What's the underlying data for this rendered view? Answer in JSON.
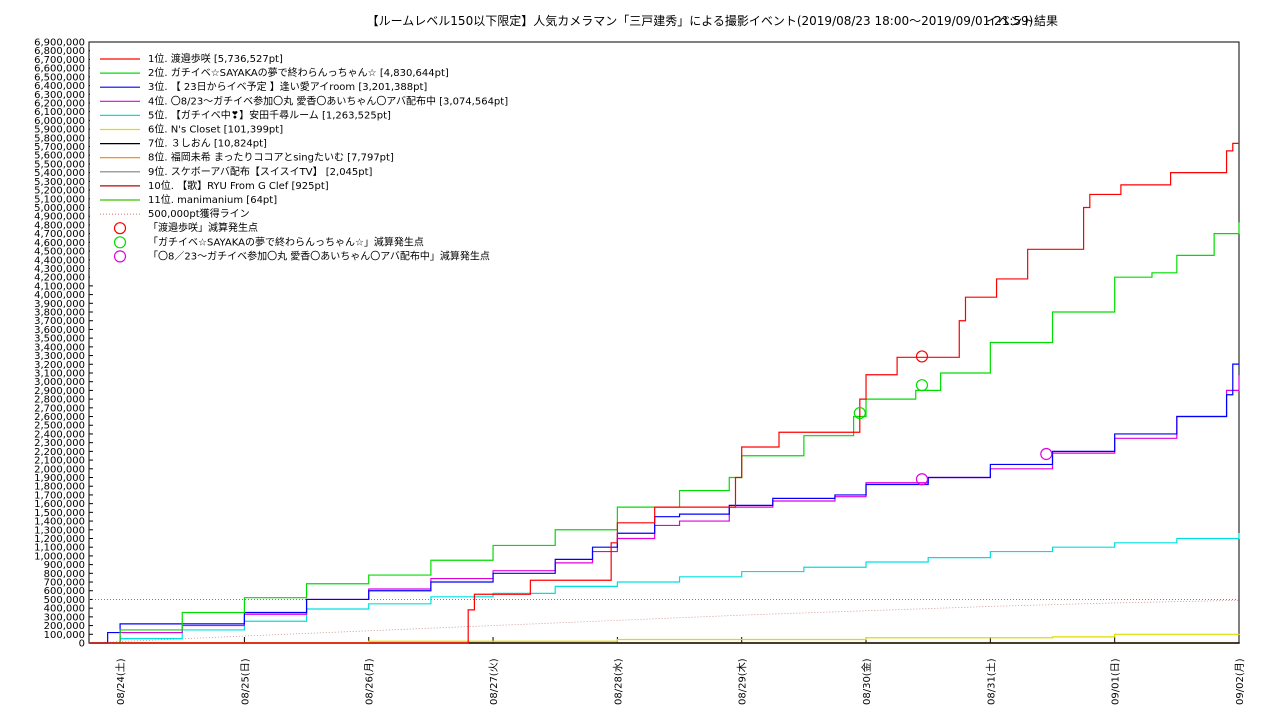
{
  "chart_data": {
    "type": "line",
    "title": "【ルームレベル150以下限定】人気カメラマン「三戸建秀」による撮影イベント(2019/08/23 18:00〜2019/09/01 21:59)",
    "subtitle": "イベント結果",
    "xlabel": "",
    "ylabel": "",
    "ylim": [
      0,
      6900000
    ],
    "ytick_step": 100000,
    "x_ticks": [
      "08/24(土)",
      "08/25(日)",
      "08/26(月)",
      "08/27(火)",
      "08/28(水)",
      "08/29(木)",
      "08/30(金)",
      "08/31(土)",
      "09/01(日)",
      "09/02(月)"
    ],
    "x_range_days": [
      -0.25,
      9.0
    ],
    "grid": true,
    "legend_position": "top-left",
    "series": [
      {
        "name": "1位. 渡邉歩咲 [5,736,527pt]",
        "color": "#ff0000",
        "step": true,
        "points": [
          [
            -0.25,
            0
          ],
          [
            2.75,
            0
          ],
          [
            2.8,
            380000
          ],
          [
            2.85,
            560000
          ],
          [
            3.25,
            560000
          ],
          [
            3.3,
            720000
          ],
          [
            3.9,
            720000
          ],
          [
            3.95,
            1150000
          ],
          [
            4.0,
            1380000
          ],
          [
            4.25,
            1380000
          ],
          [
            4.3,
            1560000
          ],
          [
            4.9,
            1560000
          ],
          [
            4.95,
            1900000
          ],
          [
            5.0,
            2250000
          ],
          [
            5.25,
            2250000
          ],
          [
            5.3,
            2420000
          ],
          [
            5.9,
            2420000
          ],
          [
            5.95,
            2800000
          ],
          [
            6.0,
            3080000
          ],
          [
            6.2,
            3080000
          ],
          [
            6.25,
            3280000
          ],
          [
            6.7,
            3280000
          ],
          [
            6.75,
            3700000
          ],
          [
            6.8,
            3970000
          ],
          [
            7.0,
            3970000
          ],
          [
            7.05,
            4180000
          ],
          [
            7.25,
            4180000
          ],
          [
            7.3,
            4520000
          ],
          [
            7.7,
            4520000
          ],
          [
            7.75,
            5000000
          ],
          [
            7.8,
            5150000
          ],
          [
            8.05,
            5260000
          ],
          [
            8.4,
            5260000
          ],
          [
            8.45,
            5400000
          ],
          [
            8.85,
            5400000
          ],
          [
            8.9,
            5650000
          ],
          [
            8.95,
            5736527
          ],
          [
            9.0,
            5736527
          ]
        ]
      },
      {
        "name": "2位. ガチイベ☆SAYAKAの夢で終わらんっちゃん☆ [4,830,644pt]",
        "color": "#00dd00",
        "step": true,
        "points": [
          [
            -0.25,
            0
          ],
          [
            0.0,
            150000
          ],
          [
            0.5,
            350000
          ],
          [
            1.0,
            520000
          ],
          [
            1.5,
            680000
          ],
          [
            2.0,
            780000
          ],
          [
            2.5,
            950000
          ],
          [
            3.0,
            1120000
          ],
          [
            3.5,
            1300000
          ],
          [
            4.0,
            1560000
          ],
          [
            4.5,
            1750000
          ],
          [
            4.9,
            1900000
          ],
          [
            5.0,
            2150000
          ],
          [
            5.5,
            2380000
          ],
          [
            5.9,
            2600000
          ],
          [
            6.0,
            2800000
          ],
          [
            6.4,
            2900000
          ],
          [
            6.6,
            3100000
          ],
          [
            7.0,
            3450000
          ],
          [
            7.5,
            3800000
          ],
          [
            8.0,
            4200000
          ],
          [
            8.3,
            4250000
          ],
          [
            8.5,
            4450000
          ],
          [
            8.8,
            4700000
          ],
          [
            9.0,
            4830644
          ]
        ]
      },
      {
        "name": "3位. 【 23日からイベ予定 】逢い愛アイroom [3,201,388pt]",
        "color": "#0000ff",
        "step": true,
        "points": [
          [
            -0.25,
            0
          ],
          [
            -0.1,
            120000
          ],
          [
            0.0,
            220000
          ],
          [
            0.5,
            220000
          ],
          [
            1.0,
            350000
          ],
          [
            1.5,
            500000
          ],
          [
            2.0,
            600000
          ],
          [
            2.5,
            700000
          ],
          [
            3.0,
            800000
          ],
          [
            3.5,
            960000
          ],
          [
            3.8,
            1100000
          ],
          [
            4.0,
            1260000
          ],
          [
            4.3,
            1450000
          ],
          [
            4.5,
            1480000
          ],
          [
            4.9,
            1580000
          ],
          [
            5.25,
            1660000
          ],
          [
            5.75,
            1700000
          ],
          [
            6.0,
            1820000
          ],
          [
            6.5,
            1900000
          ],
          [
            7.0,
            2050000
          ],
          [
            7.5,
            2200000
          ],
          [
            8.0,
            2400000
          ],
          [
            8.5,
            2600000
          ],
          [
            8.9,
            2850000
          ],
          [
            8.95,
            3201388
          ],
          [
            9.0,
            3201388
          ]
        ]
      },
      {
        "name": "4位. 〇8/23〜ガチイベ参加〇丸 愛香〇あいちゃん〇アバ配布中 [3,074,564pt]",
        "color": "#e000e0",
        "step": true,
        "points": [
          [
            -0.25,
            0
          ],
          [
            0.0,
            120000
          ],
          [
            0.5,
            200000
          ],
          [
            1.0,
            330000
          ],
          [
            1.5,
            500000
          ],
          [
            2.0,
            620000
          ],
          [
            2.5,
            740000
          ],
          [
            3.0,
            830000
          ],
          [
            3.5,
            920000
          ],
          [
            3.8,
            1050000
          ],
          [
            4.0,
            1200000
          ],
          [
            4.3,
            1350000
          ],
          [
            4.5,
            1400000
          ],
          [
            4.9,
            1560000
          ],
          [
            5.25,
            1630000
          ],
          [
            5.75,
            1680000
          ],
          [
            6.0,
            1840000
          ],
          [
            6.5,
            1900000
          ],
          [
            7.0,
            2000000
          ],
          [
            7.5,
            2180000
          ],
          [
            8.0,
            2350000
          ],
          [
            8.5,
            2600000
          ],
          [
            8.9,
            2900000
          ],
          [
            9.0,
            3074564
          ]
        ]
      },
      {
        "name": "5位. 【ガチイベ中❣】安田千尋ルーム [1,263,525pt]",
        "color": "#00e0e0",
        "step": true,
        "points": [
          [
            -0.25,
            0
          ],
          [
            0.0,
            50000
          ],
          [
            0.5,
            150000
          ],
          [
            1.0,
            250000
          ],
          [
            1.5,
            390000
          ],
          [
            2.0,
            450000
          ],
          [
            2.5,
            530000
          ],
          [
            3.0,
            570000
          ],
          [
            3.5,
            650000
          ],
          [
            4.0,
            700000
          ],
          [
            4.5,
            760000
          ],
          [
            5.0,
            820000
          ],
          [
            5.5,
            870000
          ],
          [
            6.0,
            930000
          ],
          [
            6.5,
            980000
          ],
          [
            7.0,
            1050000
          ],
          [
            7.5,
            1100000
          ],
          [
            8.0,
            1150000
          ],
          [
            8.5,
            1200000
          ],
          [
            9.0,
            1263525
          ]
        ]
      },
      {
        "name": "6位. N's Closet [101,399pt]",
        "color": "#dddd00",
        "step": true,
        "points": [
          [
            -0.25,
            0
          ],
          [
            2.0,
            20000
          ],
          [
            4.0,
            40000
          ],
          [
            6.0,
            60000
          ],
          [
            7.5,
            70000
          ],
          [
            8.0,
            100000
          ],
          [
            9.0,
            101399
          ]
        ]
      },
      {
        "name": "7位. ３しおん [10,824pt]",
        "color": "#000000",
        "step": true,
        "points": [
          [
            -0.25,
            0
          ],
          [
            9.0,
            10824
          ]
        ]
      },
      {
        "name": "8位. 福岡未希 まったりココアとsingたいむ [7,797pt]",
        "color": "#ff8000",
        "step": true,
        "points": [
          [
            -0.25,
            0
          ],
          [
            9.0,
            7797
          ]
        ]
      },
      {
        "name": "9位. スケボーアバ配布【スイスイTV】 [2,045pt]",
        "color": "#808080",
        "step": true,
        "points": [
          [
            -0.25,
            0
          ],
          [
            9.0,
            2045
          ]
        ]
      },
      {
        "name": "10位. 【歌】RYU From G Clef [925pt]",
        "color": "#c00000",
        "step": true,
        "points": [
          [
            -0.25,
            0
          ],
          [
            9.0,
            925
          ]
        ]
      },
      {
        "name": "11位. manimanium [64pt]",
        "color": "#40c000",
        "step": true,
        "points": [
          [
            -0.25,
            0
          ],
          [
            9.0,
            64
          ]
        ]
      }
    ],
    "reference_line": {
      "name": "500,000pt獲得ライン",
      "color": "#cc4444",
      "value": 500000
    },
    "dotted_growth": {
      "color": "#cc8888",
      "points": [
        [
          -0.25,
          0
        ],
        [
          1.0,
          80000
        ],
        [
          2.0,
          140000
        ],
        [
          3.0,
          200000
        ],
        [
          4.0,
          260000
        ],
        [
          5.0,
          320000
        ],
        [
          6.0,
          370000
        ],
        [
          7.0,
          420000
        ],
        [
          8.0,
          460000
        ],
        [
          9.0,
          490000
        ]
      ]
    },
    "markers": [
      {
        "name": "「渡邉歩咲」減算発生点",
        "color": "#ff0000",
        "points": [
          [
            6.45,
            3290000
          ]
        ]
      },
      {
        "name": "「ガチイベ☆SAYAKAの夢で終わらんっちゃん☆」減算発生点",
        "color": "#00dd00",
        "points": [
          [
            5.95,
            2640000
          ],
          [
            6.45,
            2960000
          ]
        ]
      },
      {
        "name": "「〇8／23〜ガチイベ参加〇丸 愛香〇あいちゃん〇アバ配布中」減算発生点",
        "color": "#e000e0",
        "points": [
          [
            6.45,
            1880000
          ],
          [
            7.45,
            2170000
          ]
        ]
      }
    ]
  }
}
